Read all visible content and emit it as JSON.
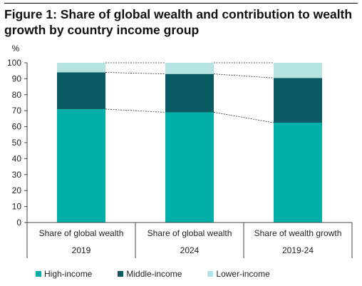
{
  "title": "Figure 1: Share of global wealth and contribution to wealth growth by country income group",
  "colors": {
    "high": "#00b0a8",
    "middle": "#0a5a63",
    "lower": "#b5e3e0"
  },
  "chart_data": {
    "type": "bar",
    "stacked": true,
    "ylabel": "%",
    "ylim": [
      0,
      100
    ],
    "yticks": [
      0,
      10,
      20,
      30,
      40,
      50,
      60,
      70,
      80,
      90,
      100
    ],
    "categories": [
      {
        "label": "Share of global wealth",
        "sublabel": "2019"
      },
      {
        "label": "Share of global wealth",
        "sublabel": "2024"
      },
      {
        "label": "Share of wealth growth",
        "sublabel": "2019-24"
      }
    ],
    "series": [
      {
        "name": "High-income",
        "values": [
          71,
          69,
          62.5
        ]
      },
      {
        "name": "Middle-income",
        "values": [
          23,
          24,
          28
        ]
      },
      {
        "name": "Lower-income",
        "values": [
          6,
          7,
          9.5
        ]
      }
    ],
    "grid": false,
    "legend_position": "bottom"
  }
}
